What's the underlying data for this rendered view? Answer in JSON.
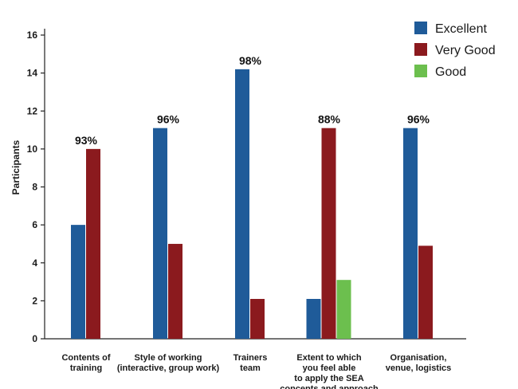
{
  "chart_data": {
    "type": "bar",
    "ylabel": "Participants",
    "ylim": [
      0,
      16
    ],
    "yticks": [
      0,
      2,
      4,
      6,
      8,
      10,
      12,
      14,
      16
    ],
    "categories": [
      [
        "Contents of",
        "training"
      ],
      [
        "Style of working",
        "(interactive, group work)"
      ],
      [
        "Trainers",
        "team"
      ],
      [
        "Extent to which",
        "you feel able",
        "to apply the SEA",
        "concepts and approach"
      ],
      [
        "Organisation,",
        "venue, logistics"
      ]
    ],
    "series": [
      {
        "name": "Excellent",
        "color": "#1f5b99",
        "values": [
          6,
          11.1,
          14.2,
          2.1,
          11.1
        ]
      },
      {
        "name": "Very Good",
        "color": "#8b1a1e",
        "values": [
          10,
          5,
          2.1,
          11.1,
          4.9
        ]
      },
      {
        "name": "Good",
        "color": "#6cbf4e",
        "values": [
          0,
          0,
          0,
          3.1,
          0
        ]
      }
    ],
    "annotations": [
      "93%",
      "96%",
      "98%",
      "88%",
      "96%"
    ],
    "legend_position": "top-right",
    "grid": false
  }
}
